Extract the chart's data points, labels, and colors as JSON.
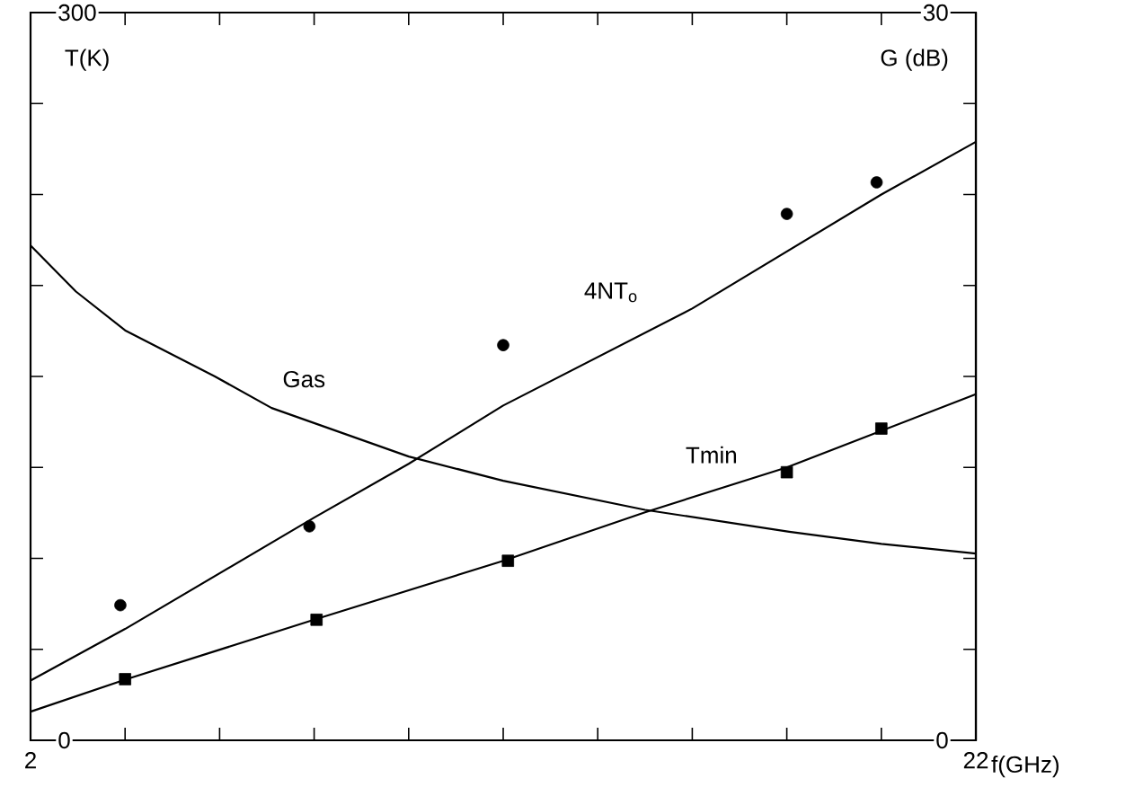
{
  "chart_data": {
    "type": "line",
    "xlabel": "f(GHz)",
    "ylabel": "T(K)",
    "y2label": "G (dB)",
    "xlim": [
      2,
      22
    ],
    "ylim": [
      0,
      300
    ],
    "y2lim": [
      0,
      30
    ],
    "xticks": [
      2,
      {
        "value": 4,
        "label": null
      },
      {
        "value": 6,
        "label": null
      },
      {
        "value": 8,
        "label": null
      },
      {
        "value": 10,
        "label": null
      },
      {
        "value": 12,
        "label": null
      },
      {
        "value": 14,
        "label": null
      },
      {
        "value": 16,
        "label": null
      },
      {
        "value": 18,
        "label": null
      },
      {
        "value": 20,
        "label": null
      },
      22
    ],
    "yticks": [
      0,
      {
        "value": 37.5,
        "label": null
      },
      {
        "value": 75,
        "label": null
      },
      {
        "value": 112.5,
        "label": null
      },
      {
        "value": 150,
        "label": null
      },
      {
        "value": 187.5,
        "label": null
      },
      {
        "value": 225,
        "label": null
      },
      {
        "value": 262.5,
        "label": null
      },
      300
    ],
    "y2ticks": [
      0,
      {
        "value": 3.75,
        "label": null
      },
      {
        "value": 7.5,
        "label": null
      },
      {
        "value": 11.25,
        "label": null
      },
      {
        "value": 15,
        "label": null
      },
      {
        "value": 18.75,
        "label": null
      },
      {
        "value": 22.5,
        "label": null
      },
      {
        "value": 26.25,
        "label": null
      },
      30
    ],
    "series": [
      {
        "name": "4NT$_{o}$",
        "color": "#000000",
        "x": [
          2,
          4,
          8,
          10,
          12,
          16,
          20,
          22
        ],
        "values": [
          24.6,
          45.9,
          91.8,
          114,
          138,
          178,
          225,
          246.7
        ]
      },
      {
        "type": "scatter",
        "marker": "circle",
        "color": "#000000",
        "x": [
          3.9,
          7.9,
          12,
          18,
          19.9
        ],
        "values": [
          55.7,
          88.2,
          162.9,
          217,
          230
        ]
      },
      {
        "name": "Tmin",
        "color": "#000000",
        "x": [
          2,
          4,
          8,
          12,
          15,
          18,
          22
        ],
        "values": [
          11.8,
          25,
          49.7,
          74,
          94,
          112.5,
          142.7
        ]
      },
      {
        "type": "scatter",
        "marker": "square",
        "color": "#000000",
        "x": [
          4,
          8.05,
          12.1,
          18,
          20
        ],
        "values": [
          25.2,
          49.7,
          74,
          110.5,
          128.5
        ]
      },
      {
        "name": "Gas",
        "axis": "y2",
        "color": "#000000",
        "x": [
          2,
          2.96,
          4,
          5.9,
          7.1,
          10,
          12,
          15,
          18.05,
          20,
          22
        ],
        "values": [
          20.4,
          18.5,
          16.9,
          15.0,
          13.7,
          11.7,
          10.7,
          9.5,
          8.6,
          8.1,
          7.7
        ]
      }
    ]
  }
}
